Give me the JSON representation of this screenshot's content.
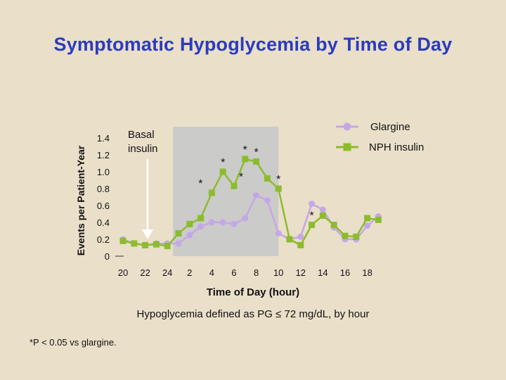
{
  "title": "Symptomatic Hypoglycemia by Time of Day",
  "footnote": "*P < 0.05 vs glargine.",
  "definition": "Hypoglycemia defined as PG ≤ 72 mg/dL, by hour",
  "annotation": {
    "basal_insulin": [
      "Basal",
      "insulin"
    ]
  },
  "chart_data": {
    "type": "line",
    "title": "Symptomatic Hypoglycemia by Time of Day",
    "xlabel": "Time of Day (hour)",
    "ylabel": "Events per Patient-Year",
    "ylim": [
      0,
      1.4
    ],
    "y_ticks": [
      0,
      0.2,
      0.4,
      0.6,
      0.8,
      1.0,
      1.2,
      1.4
    ],
    "y_tick_labels": [
      "0",
      "0.2",
      "0.4",
      "0.6",
      "0.8",
      "1.0",
      "1.2",
      "1.4"
    ],
    "x_tick_labels": [
      "20",
      "22",
      "24",
      "2",
      "4",
      "6",
      "8",
      "10",
      "12",
      "14",
      "16",
      "18"
    ],
    "x_hours": [
      20,
      21,
      22,
      23,
      24,
      25,
      26,
      27,
      28,
      29,
      30,
      31,
      32,
      33,
      34,
      35,
      36,
      37,
      38,
      39,
      40,
      41,
      42,
      43
    ],
    "legend_position": "top-right",
    "shaded_region_hours": [
      24.5,
      34
    ],
    "series": [
      {
        "name": "Glargine",
        "color": "#c4a8e6",
        "values": [
          0.2,
          0.15,
          0.13,
          0.15,
          0.15,
          0.15,
          0.25,
          0.35,
          0.4,
          0.4,
          0.38,
          0.45,
          0.72,
          0.66,
          0.27,
          0.2,
          0.23,
          0.62,
          0.55,
          0.34,
          0.2,
          0.2,
          0.36,
          0.47
        ]
      },
      {
        "name": "NPH insulin",
        "color": "#8cbc2e",
        "values": [
          0.18,
          0.15,
          0.13,
          0.14,
          0.12,
          0.27,
          0.38,
          0.45,
          0.75,
          1.0,
          0.83,
          1.15,
          1.12,
          0.92,
          0.8,
          0.2,
          0.13,
          0.37,
          0.48,
          0.37,
          0.24,
          0.23,
          0.45,
          0.43
        ]
      }
    ],
    "significance_markers": [
      {
        "hour": 28,
        "label": "*"
      },
      {
        "hour": 29,
        "label": "*"
      },
      {
        "hour": 30,
        "label": "*"
      },
      {
        "hour": 31,
        "label": "*"
      },
      {
        "hour": 32,
        "label": "*"
      },
      {
        "hour": 34,
        "label": "*"
      },
      {
        "hour": 37,
        "label": "*"
      }
    ]
  }
}
